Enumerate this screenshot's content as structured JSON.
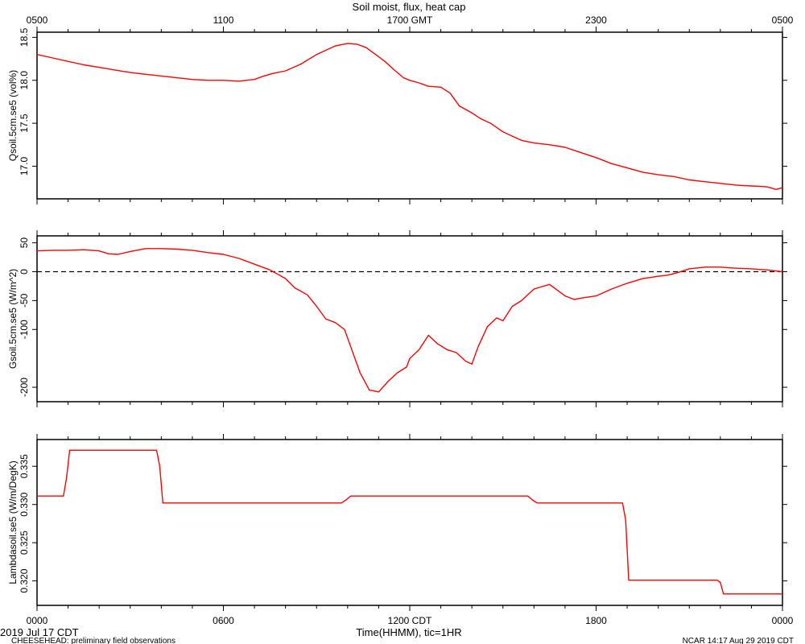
{
  "figure": {
    "title": "Soil moist, flux, heat cap",
    "top_axis_ticks": [
      "0500",
      "1100",
      "1700 GMT",
      "2300",
      "0500"
    ],
    "bottom_axis_ticks": [
      "0000",
      "0600",
      "1200 CDT",
      "1800",
      "0000"
    ],
    "xlabel": "Time(HHMM), tic=1HR",
    "date_label": "2019 Jul 17 CDT",
    "footer_left": "CHEESEHEAD: preliminary field observations",
    "footer_right": "NCAR 14:17 Aug 29 2019 CDT",
    "line_color": "#ff0000"
  },
  "chart_data": [
    {
      "type": "line",
      "ylabel": "Qsoil.5cm.se5 (vol%)",
      "xlim": [
        0,
        24
      ],
      "ylim": [
        16.62,
        18.56
      ],
      "yticks": [
        17.0,
        17.5,
        18.0,
        18.5
      ],
      "ytick_labels": [
        "17.0",
        "17.5",
        "18.0",
        "18.5"
      ],
      "zero_line": false,
      "series": [
        {
          "x": [
            0,
            0.5,
            1,
            1.5,
            2,
            2.5,
            3,
            3.5,
            4,
            4.5,
            5,
            5.5,
            6,
            6.5,
            7,
            7.3,
            7.6,
            8,
            8.5,
            9,
            9.3,
            9.6,
            10,
            10.3,
            10.6,
            10.9,
            11.2,
            11.5,
            11.8,
            12,
            12.3,
            12.6,
            13,
            13.3,
            13.6,
            14,
            14.3,
            14.6,
            15,
            15.3,
            15.6,
            16,
            16.5,
            17,
            17.5,
            18,
            18.5,
            19,
            19.5,
            20,
            20.5,
            21,
            21.5,
            22,
            22.5,
            23,
            23.5,
            23.8,
            24
          ],
          "y": [
            18.3,
            18.26,
            18.22,
            18.18,
            18.15,
            18.12,
            18.09,
            18.07,
            18.05,
            18.03,
            18.01,
            18.0,
            18.0,
            17.99,
            18.01,
            18.05,
            18.08,
            18.11,
            18.19,
            18.3,
            18.35,
            18.4,
            18.43,
            18.42,
            18.38,
            18.3,
            18.22,
            18.12,
            18.03,
            18.0,
            17.97,
            17.93,
            17.92,
            17.85,
            17.7,
            17.62,
            17.55,
            17.5,
            17.4,
            17.35,
            17.3,
            17.27,
            17.25,
            17.22,
            17.16,
            17.1,
            17.03,
            16.98,
            16.93,
            16.9,
            16.88,
            16.84,
            16.82,
            16.8,
            16.78,
            16.77,
            16.76,
            16.73,
            16.75
          ]
        }
      ]
    },
    {
      "type": "line",
      "ylabel": "Gsoil.5cm.se5 (W/m^2)",
      "xlim": [
        0,
        24
      ],
      "ylim": [
        -225,
        62
      ],
      "yticks": [
        50,
        0,
        -50,
        -100,
        -200
      ],
      "ytick_labels": [
        "50",
        "0",
        "-50",
        "-100",
        "-200"
      ],
      "zero_line": true,
      "series": [
        {
          "x": [
            0,
            0.5,
            1,
            1.5,
            2,
            2.3,
            2.6,
            3,
            3.5,
            4,
            4.5,
            5,
            5.5,
            6,
            6.5,
            7,
            7.5,
            8,
            8.3,
            8.7,
            9,
            9.3,
            9.6,
            9.9,
            10.1,
            10.4,
            10.7,
            11,
            11.3,
            11.6,
            11.9,
            12.0,
            12.3,
            12.6,
            12.9,
            13.2,
            13.5,
            13.8,
            14.0,
            14.2,
            14.5,
            14.8,
            15.0,
            15.3,
            15.6,
            16.0,
            16.5,
            17.0,
            17.3,
            17.6,
            18.0,
            18.5,
            19.0,
            19.5,
            20.0,
            20.3,
            20.6,
            21.0,
            21.5,
            22.0,
            22.5,
            23.0,
            23.5,
            24
          ],
          "y": [
            36,
            37,
            37,
            38,
            36,
            31,
            30,
            35,
            40,
            40,
            39,
            37,
            33,
            30,
            23,
            13,
            3,
            -12,
            -28,
            -40,
            -60,
            -82,
            -88,
            -100,
            -130,
            -175,
            -205,
            -208,
            -190,
            -175,
            -165,
            -150,
            -135,
            -110,
            -125,
            -135,
            -140,
            -155,
            -160,
            -130,
            -95,
            -80,
            -85,
            -60,
            -50,
            -30,
            -22,
            -42,
            -48,
            -45,
            -42,
            -30,
            -20,
            -12,
            -8,
            -6,
            -2,
            5,
            8,
            8,
            6,
            5,
            3,
            0
          ]
        }
      ]
    },
    {
      "type": "line",
      "ylabel": "Lambdasoil.se5 (W/m/DegK)",
      "xlim": [
        0,
        24
      ],
      "ylim": [
        0.3168,
        0.3385
      ],
      "yticks": [
        0.32,
        0.325,
        0.33,
        0.335
      ],
      "ytick_labels": [
        "0.320",
        "0.325",
        "0.330",
        "0.335"
      ],
      "zero_line": false,
      "series": [
        {
          "x": [
            0,
            0.85,
            0.95,
            1.05,
            3.85,
            3.95,
            4.05,
            9.8,
            9.95,
            10.1,
            15.8,
            15.95,
            16.1,
            18.85,
            18.95,
            19.05,
            21.9,
            22.0,
            22.1,
            24
          ],
          "y": [
            0.3311,
            0.3311,
            0.3335,
            0.3371,
            0.3371,
            0.335,
            0.3302,
            0.3302,
            0.3306,
            0.3311,
            0.3311,
            0.3306,
            0.3302,
            0.3302,
            0.328,
            0.3201,
            0.3201,
            0.3198,
            0.3183,
            0.3183
          ]
        }
      ]
    }
  ]
}
